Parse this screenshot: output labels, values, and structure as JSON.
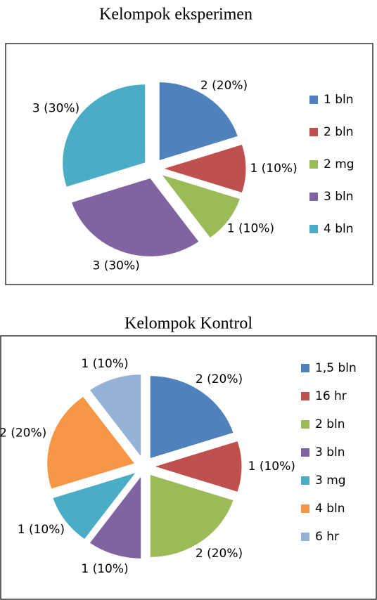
{
  "chart_data": [
    {
      "type": "pie",
      "title": "Kelompok eksperimen",
      "categories": [
        "1 bln",
        "2 bln",
        "2 mg",
        "3 bln",
        "4 bln"
      ],
      "values": [
        2,
        1,
        1,
        3,
        3
      ],
      "value_labels": [
        "2 (20%)",
        "1 (10%)",
        "1 (10%)",
        "3 (30%)",
        "3 (30%)"
      ],
      "colors": [
        "#4f81bd",
        "#c0504d",
        "#9bbb59",
        "#8064a2",
        "#4bacc6"
      ]
    },
    {
      "type": "pie",
      "title": "Kelompok Kontrol",
      "categories": [
        "1,5 bln",
        "16 hr",
        "2 bln",
        "3 bln",
        "3 mg",
        "4 bln",
        "6 hr"
      ],
      "values": [
        2,
        1,
        2,
        1,
        1,
        2,
        1
      ],
      "value_labels": [
        "2 (20%)",
        "1 (10%)",
        "2 (20%)",
        "1 (10%)",
        "1 (10%)",
        "2 (20%)",
        "1 (10%)"
      ],
      "colors": [
        "#4f81bd",
        "#c0504d",
        "#9bbb59",
        "#8064a2",
        "#4bacc6",
        "#f79646",
        "#95b3d7"
      ]
    }
  ]
}
